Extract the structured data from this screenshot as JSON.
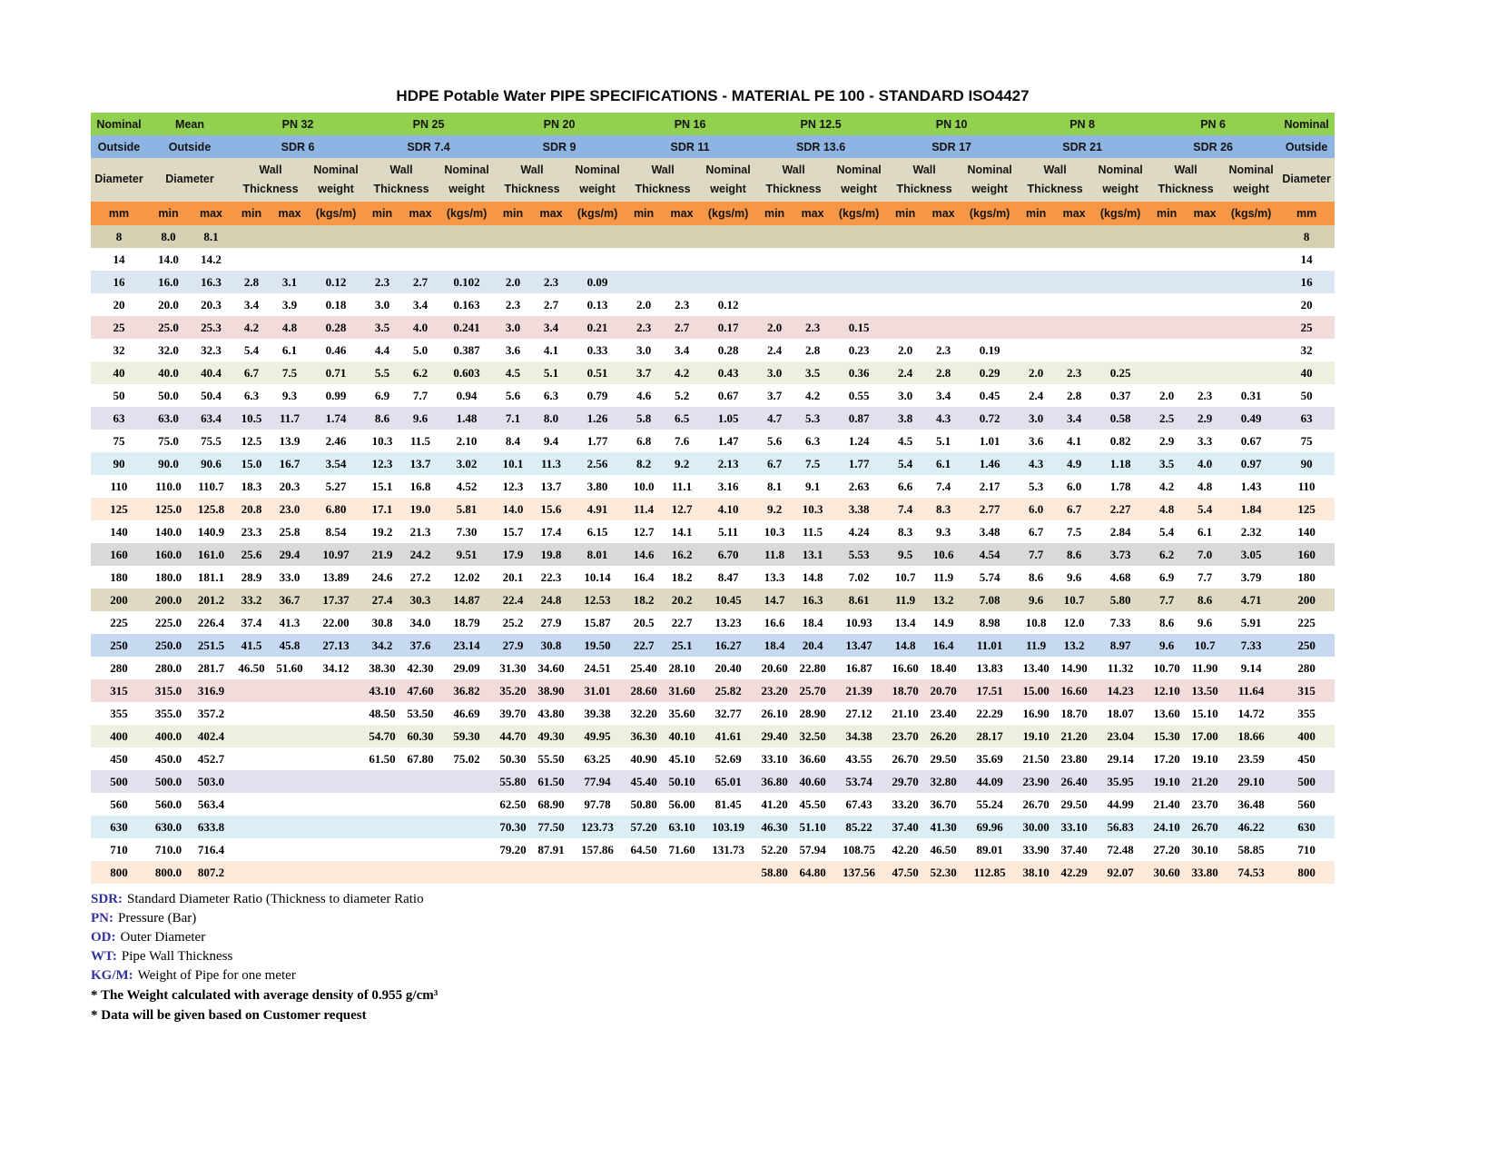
{
  "title": "HDPE Potable Water PIPE SPECIFICATIONS - MATERIAL PE 100 - STANDARD ISO4427",
  "header": {
    "nominal": "Nominal",
    "outside": "Outside",
    "diameter": "Diameter",
    "mm": "mm",
    "mean": "Mean",
    "min": "min",
    "max": "max",
    "kgs": "(kgs/m)",
    "wall_1": "Wall",
    "wall_2": "Thickness",
    "weight_1": "Nominal",
    "weight_2": "weight"
  },
  "colors": {
    "header_green": "#92d050",
    "header_blue": "#8db4e2",
    "header_beige": "#ddd9c3",
    "header_orange": "#f79646",
    "note_label_blue": "#333399"
  },
  "table": {
    "pn_groups": [
      {
        "pn": "PN 32",
        "sdr": "SDR 6"
      },
      {
        "pn": "PN 25",
        "sdr": "SDR 7.4"
      },
      {
        "pn": "PN 20",
        "sdr": "SDR 9"
      },
      {
        "pn": "PN 16",
        "sdr": "SDR 11"
      },
      {
        "pn": "PN 12.5",
        "sdr": "SDR 13.6"
      },
      {
        "pn": "PN 10",
        "sdr": "SDR 17"
      },
      {
        "pn": "PN 8",
        "sdr": "SDR 21"
      },
      {
        "pn": "PN 6",
        "sdr": "SDR 26"
      }
    ],
    "rows": [
      {
        "bg": "#d6d0b3",
        "cells": [
          "8",
          "8.0",
          "8.1",
          "",
          "",
          "",
          "",
          "",
          "",
          "",
          "",
          "",
          "",
          "",
          "",
          "",
          "",
          "",
          "",
          "",
          "",
          "",
          "",
          "",
          "",
          "",
          "",
          "8"
        ]
      },
      {
        "bg": "#ffffff",
        "cells": [
          "14",
          "14.0",
          "14.2",
          "",
          "",
          "",
          "",
          "",
          "",
          "",
          "",
          "",
          "",
          "",
          "",
          "",
          "",
          "",
          "",
          "",
          "",
          "",
          "",
          "",
          "",
          "",
          "",
          "14"
        ]
      },
      {
        "bg": "#dce6f2",
        "cells": [
          "16",
          "16.0",
          "16.3",
          "2.8",
          "3.1",
          "0.12",
          "2.3",
          "2.7",
          "0.102",
          "2.0",
          "2.3",
          "0.09",
          "",
          "",
          "",
          "",
          "",
          "",
          "",
          "",
          "",
          "",
          "",
          "",
          "",
          "",
          "",
          "16"
        ]
      },
      {
        "bg": "#ffffff",
        "cells": [
          "20",
          "20.0",
          "20.3",
          "3.4",
          "3.9",
          "0.18",
          "3.0",
          "3.4",
          "0.163",
          "2.3",
          "2.7",
          "0.13",
          "2.0",
          "2.3",
          "0.12",
          "",
          "",
          "",
          "",
          "",
          "",
          "",
          "",
          "",
          "",
          "",
          "",
          "20"
        ]
      },
      {
        "bg": "#f2dcdb",
        "cells": [
          "25",
          "25.0",
          "25.3",
          "4.2",
          "4.8",
          "0.28",
          "3.5",
          "4.0",
          "0.241",
          "3.0",
          "3.4",
          "0.21",
          "2.3",
          "2.7",
          "0.17",
          "2.0",
          "2.3",
          "0.15",
          "",
          "",
          "",
          "",
          "",
          "",
          "",
          "",
          "",
          "25"
        ]
      },
      {
        "bg": "#ffffff",
        "cells": [
          "32",
          "32.0",
          "32.3",
          "5.4",
          "6.1",
          "0.46",
          "4.4",
          "5.0",
          "0.387",
          "3.6",
          "4.1",
          "0.33",
          "3.0",
          "3.4",
          "0.28",
          "2.4",
          "2.8",
          "0.23",
          "2.0",
          "2.3",
          "0.19",
          "",
          "",
          "",
          "",
          "",
          "",
          "32"
        ]
      },
      {
        "bg": "#ebf1de",
        "cells": [
          "40",
          "40.0",
          "40.4",
          "6.7",
          "7.5",
          "0.71",
          "5.5",
          "6.2",
          "0.603",
          "4.5",
          "5.1",
          "0.51",
          "3.7",
          "4.2",
          "0.43",
          "3.0",
          "3.5",
          "0.36",
          "2.4",
          "2.8",
          "0.29",
          "2.0",
          "2.3",
          "0.25",
          "",
          "",
          "",
          "40"
        ]
      },
      {
        "bg": "#ffffff",
        "cells": [
          "50",
          "50.0",
          "50.4",
          "6.3",
          "9.3",
          "0.99",
          "6.9",
          "7.7",
          "0.94",
          "5.6",
          "6.3",
          "0.79",
          "4.6",
          "5.2",
          "0.67",
          "3.7",
          "4.2",
          "0.55",
          "3.0",
          "3.4",
          "0.45",
          "2.4",
          "2.8",
          "0.37",
          "2.0",
          "2.3",
          "0.31",
          "50"
        ]
      },
      {
        "bg": "#e4dfec",
        "cells": [
          "63",
          "63.0",
          "63.4",
          "10.5",
          "11.7",
          "1.74",
          "8.6",
          "9.6",
          "1.48",
          "7.1",
          "8.0",
          "1.26",
          "5.8",
          "6.5",
          "1.05",
          "4.7",
          "5.3",
          "0.87",
          "3.8",
          "4.3",
          "0.72",
          "3.0",
          "3.4",
          "0.58",
          "2.5",
          "2.9",
          "0.49",
          "63"
        ]
      },
      {
        "bg": "#ffffff",
        "cells": [
          "75",
          "75.0",
          "75.5",
          "12.5",
          "13.9",
          "2.46",
          "10.3",
          "11.5",
          "2.10",
          "8.4",
          "9.4",
          "1.77",
          "6.8",
          "7.6",
          "1.47",
          "5.6",
          "6.3",
          "1.24",
          "4.5",
          "5.1",
          "1.01",
          "3.6",
          "4.1",
          "0.82",
          "2.9",
          "3.3",
          "0.67",
          "75"
        ]
      },
      {
        "bg": "#daeef3",
        "cells": [
          "90",
          "90.0",
          "90.6",
          "15.0",
          "16.7",
          "3.54",
          "12.3",
          "13.7",
          "3.02",
          "10.1",
          "11.3",
          "2.56",
          "8.2",
          "9.2",
          "2.13",
          "6.7",
          "7.5",
          "1.77",
          "5.4",
          "6.1",
          "1.46",
          "4.3",
          "4.9",
          "1.18",
          "3.5",
          "4.0",
          "0.97",
          "90"
        ]
      },
      {
        "bg": "#ffffff",
        "cells": [
          "110",
          "110.0",
          "110.7",
          "18.3",
          "20.3",
          "5.27",
          "15.1",
          "16.8",
          "4.52",
          "12.3",
          "13.7",
          "3.80",
          "10.0",
          "11.1",
          "3.16",
          "8.1",
          "9.1",
          "2.63",
          "6.6",
          "7.4",
          "2.17",
          "5.3",
          "6.0",
          "1.78",
          "4.2",
          "4.8",
          "1.43",
          "110"
        ]
      },
      {
        "bg": "#fde9d9",
        "cells": [
          "125",
          "125.0",
          "125.8",
          "20.8",
          "23.0",
          "6.80",
          "17.1",
          "19.0",
          "5.81",
          "14.0",
          "15.6",
          "4.91",
          "11.4",
          "12.7",
          "4.10",
          "9.2",
          "10.3",
          "3.38",
          "7.4",
          "8.3",
          "2.77",
          "6.0",
          "6.7",
          "2.27",
          "4.8",
          "5.4",
          "1.84",
          "125"
        ]
      },
      {
        "bg": "#ffffff",
        "cells": [
          "140",
          "140.0",
          "140.9",
          "23.3",
          "25.8",
          "8.54",
          "19.2",
          "21.3",
          "7.30",
          "15.7",
          "17.4",
          "6.15",
          "12.7",
          "14.1",
          "5.11",
          "10.3",
          "11.5",
          "4.24",
          "8.3",
          "9.3",
          "3.48",
          "6.7",
          "7.5",
          "2.84",
          "5.4",
          "6.1",
          "2.32",
          "140"
        ]
      },
      {
        "bg": "#d9d9d9",
        "cells": [
          "160",
          "160.0",
          "161.0",
          "25.6",
          "29.4",
          "10.97",
          "21.9",
          "24.2",
          "9.51",
          "17.9",
          "19.8",
          "8.01",
          "14.6",
          "16.2",
          "6.70",
          "11.8",
          "13.1",
          "5.53",
          "9.5",
          "10.6",
          "4.54",
          "7.7",
          "8.6",
          "3.73",
          "6.2",
          "7.0",
          "3.05",
          "160"
        ]
      },
      {
        "bg": "#ffffff",
        "cells": [
          "180",
          "180.0",
          "181.1",
          "28.9",
          "33.0",
          "13.89",
          "24.6",
          "27.2",
          "12.02",
          "20.1",
          "22.3",
          "10.14",
          "16.4",
          "18.2",
          "8.47",
          "13.3",
          "14.8",
          "7.02",
          "10.7",
          "11.9",
          "5.74",
          "8.6",
          "9.6",
          "4.68",
          "6.9",
          "7.7",
          "3.79",
          "180"
        ]
      },
      {
        "bg": "#ddd9c3",
        "cells": [
          "200",
          "200.0",
          "201.2",
          "33.2",
          "36.7",
          "17.37",
          "27.4",
          "30.3",
          "14.87",
          "22.4",
          "24.8",
          "12.53",
          "18.2",
          "20.2",
          "10.45",
          "14.7",
          "16.3",
          "8.61",
          "11.9",
          "13.2",
          "7.08",
          "9.6",
          "10.7",
          "5.80",
          "7.7",
          "8.6",
          "4.71",
          "200"
        ]
      },
      {
        "bg": "#ffffff",
        "cells": [
          "225",
          "225.0",
          "226.4",
          "37.4",
          "41.3",
          "22.00",
          "30.8",
          "34.0",
          "18.79",
          "25.2",
          "27.9",
          "15.87",
          "20.5",
          "22.7",
          "13.23",
          "16.6",
          "18.4",
          "10.93",
          "13.4",
          "14.9",
          "8.98",
          "10.8",
          "12.0",
          "7.33",
          "8.6",
          "9.6",
          "5.91",
          "225"
        ]
      },
      {
        "bg": "#c6d9f0",
        "cells": [
          "250",
          "250.0",
          "251.5",
          "41.5",
          "45.8",
          "27.13",
          "34.2",
          "37.6",
          "23.14",
          "27.9",
          "30.8",
          "19.50",
          "22.7",
          "25.1",
          "16.27",
          "18.4",
          "20.4",
          "13.47",
          "14.8",
          "16.4",
          "11.01",
          "11.9",
          "13.2",
          "8.97",
          "9.6",
          "10.7",
          "7.33",
          "250"
        ]
      },
      {
        "bg": "#ffffff",
        "cells": [
          "280",
          "280.0",
          "281.7",
          "46.50",
          "51.60",
          "34.12",
          "38.30",
          "42.30",
          "29.09",
          "31.30",
          "34.60",
          "24.51",
          "25.40",
          "28.10",
          "20.40",
          "20.60",
          "22.80",
          "16.87",
          "16.60",
          "18.40",
          "13.83",
          "13.40",
          "14.90",
          "11.32",
          "10.70",
          "11.90",
          "9.14",
          "280"
        ]
      },
      {
        "bg": "#f2dcdb",
        "cells": [
          "315",
          "315.0",
          "316.9",
          "",
          "",
          "",
          "43.10",
          "47.60",
          "36.82",
          "35.20",
          "38.90",
          "31.01",
          "28.60",
          "31.60",
          "25.82",
          "23.20",
          "25.70",
          "21.39",
          "18.70",
          "20.70",
          "17.51",
          "15.00",
          "16.60",
          "14.23",
          "12.10",
          "13.50",
          "11.64",
          "315"
        ]
      },
      {
        "bg": "#ffffff",
        "cells": [
          "355",
          "355.0",
          "357.2",
          "",
          "",
          "",
          "48.50",
          "53.50",
          "46.69",
          "39.70",
          "43.80",
          "39.38",
          "32.20",
          "35.60",
          "32.77",
          "26.10",
          "28.90",
          "27.12",
          "21.10",
          "23.40",
          "22.29",
          "16.90",
          "18.70",
          "18.07",
          "13.60",
          "15.10",
          "14.72",
          "355"
        ]
      },
      {
        "bg": "#ebf1de",
        "cells": [
          "400",
          "400.0",
          "402.4",
          "",
          "",
          "",
          "54.70",
          "60.30",
          "59.30",
          "44.70",
          "49.30",
          "49.95",
          "36.30",
          "40.10",
          "41.61",
          "29.40",
          "32.50",
          "34.38",
          "23.70",
          "26.20",
          "28.17",
          "19.10",
          "21.20",
          "23.04",
          "15.30",
          "17.00",
          "18.66",
          "400"
        ]
      },
      {
        "bg": "#ffffff",
        "cells": [
          "450",
          "450.0",
          "452.7",
          "",
          "",
          "",
          "61.50",
          "67.80",
          "75.02",
          "50.30",
          "55.50",
          "63.25",
          "40.90",
          "45.10",
          "52.69",
          "33.10",
          "36.60",
          "43.55",
          "26.70",
          "29.50",
          "35.69",
          "21.50",
          "23.80",
          "29.14",
          "17.20",
          "19.10",
          "23.59",
          "450"
        ]
      },
      {
        "bg": "#e4dfec",
        "cells": [
          "500",
          "500.0",
          "503.0",
          "",
          "",
          "",
          "",
          "",
          "",
          "55.80",
          "61.50",
          "77.94",
          "45.40",
          "50.10",
          "65.01",
          "36.80",
          "40.60",
          "53.74",
          "29.70",
          "32.80",
          "44.09",
          "23.90",
          "26.40",
          "35.95",
          "19.10",
          "21.20",
          "29.10",
          "500"
        ]
      },
      {
        "bg": "#ffffff",
        "cells": [
          "560",
          "560.0",
          "563.4",
          "",
          "",
          "",
          "",
          "",
          "",
          "62.50",
          "68.90",
          "97.78",
          "50.80",
          "56.00",
          "81.45",
          "41.20",
          "45.50",
          "67.43",
          "33.20",
          "36.70",
          "55.24",
          "26.70",
          "29.50",
          "44.99",
          "21.40",
          "23.70",
          "36.48",
          "560"
        ]
      },
      {
        "bg": "#daeef3",
        "cells": [
          "630",
          "630.0",
          "633.8",
          "",
          "",
          "",
          "",
          "",
          "",
          "70.30",
          "77.50",
          "123.73",
          "57.20",
          "63.10",
          "103.19",
          "46.30",
          "51.10",
          "85.22",
          "37.40",
          "41.30",
          "69.96",
          "30.00",
          "33.10",
          "56.83",
          "24.10",
          "26.70",
          "46.22",
          "630"
        ]
      },
      {
        "bg": "#ffffff",
        "cells": [
          "710",
          "710.0",
          "716.4",
          "",
          "",
          "",
          "",
          "",
          "",
          "79.20",
          "87.91",
          "157.86",
          "64.50",
          "71.60",
          "131.73",
          "52.20",
          "57.94",
          "108.75",
          "42.20",
          "46.50",
          "89.01",
          "33.90",
          "37.40",
          "72.48",
          "27.20",
          "30.10",
          "58.85",
          "710"
        ]
      },
      {
        "bg": "#fde9d9",
        "cells": [
          "800",
          "800.0",
          "807.2",
          "",
          "",
          "",
          "",
          "",
          "",
          "",
          "",
          "",
          "",
          "",
          "",
          "58.80",
          "64.80",
          "137.56",
          "47.50",
          "52.30",
          "112.85",
          "38.10",
          "42.29",
          "92.07",
          "30.60",
          "33.80",
          "74.53",
          "800"
        ]
      }
    ]
  },
  "footnotes": {
    "defs": [
      {
        "label": "SDR:",
        "text": "Standard Diameter Ratio (Thickness to diameter Ratio"
      },
      {
        "label": "PN:",
        "text": "Pressure (Bar)"
      },
      {
        "label": "OD:",
        "text": "Outer Diameter"
      },
      {
        "label": "WT:",
        "text": "Pipe Wall Thickness"
      },
      {
        "label": "KG/M:",
        "text": "Weight of Pipe for one meter"
      }
    ],
    "stars": [
      "* The Weight calculated with average density of 0.955 g/cm³",
      "* Data will be given based on Customer request"
    ]
  }
}
